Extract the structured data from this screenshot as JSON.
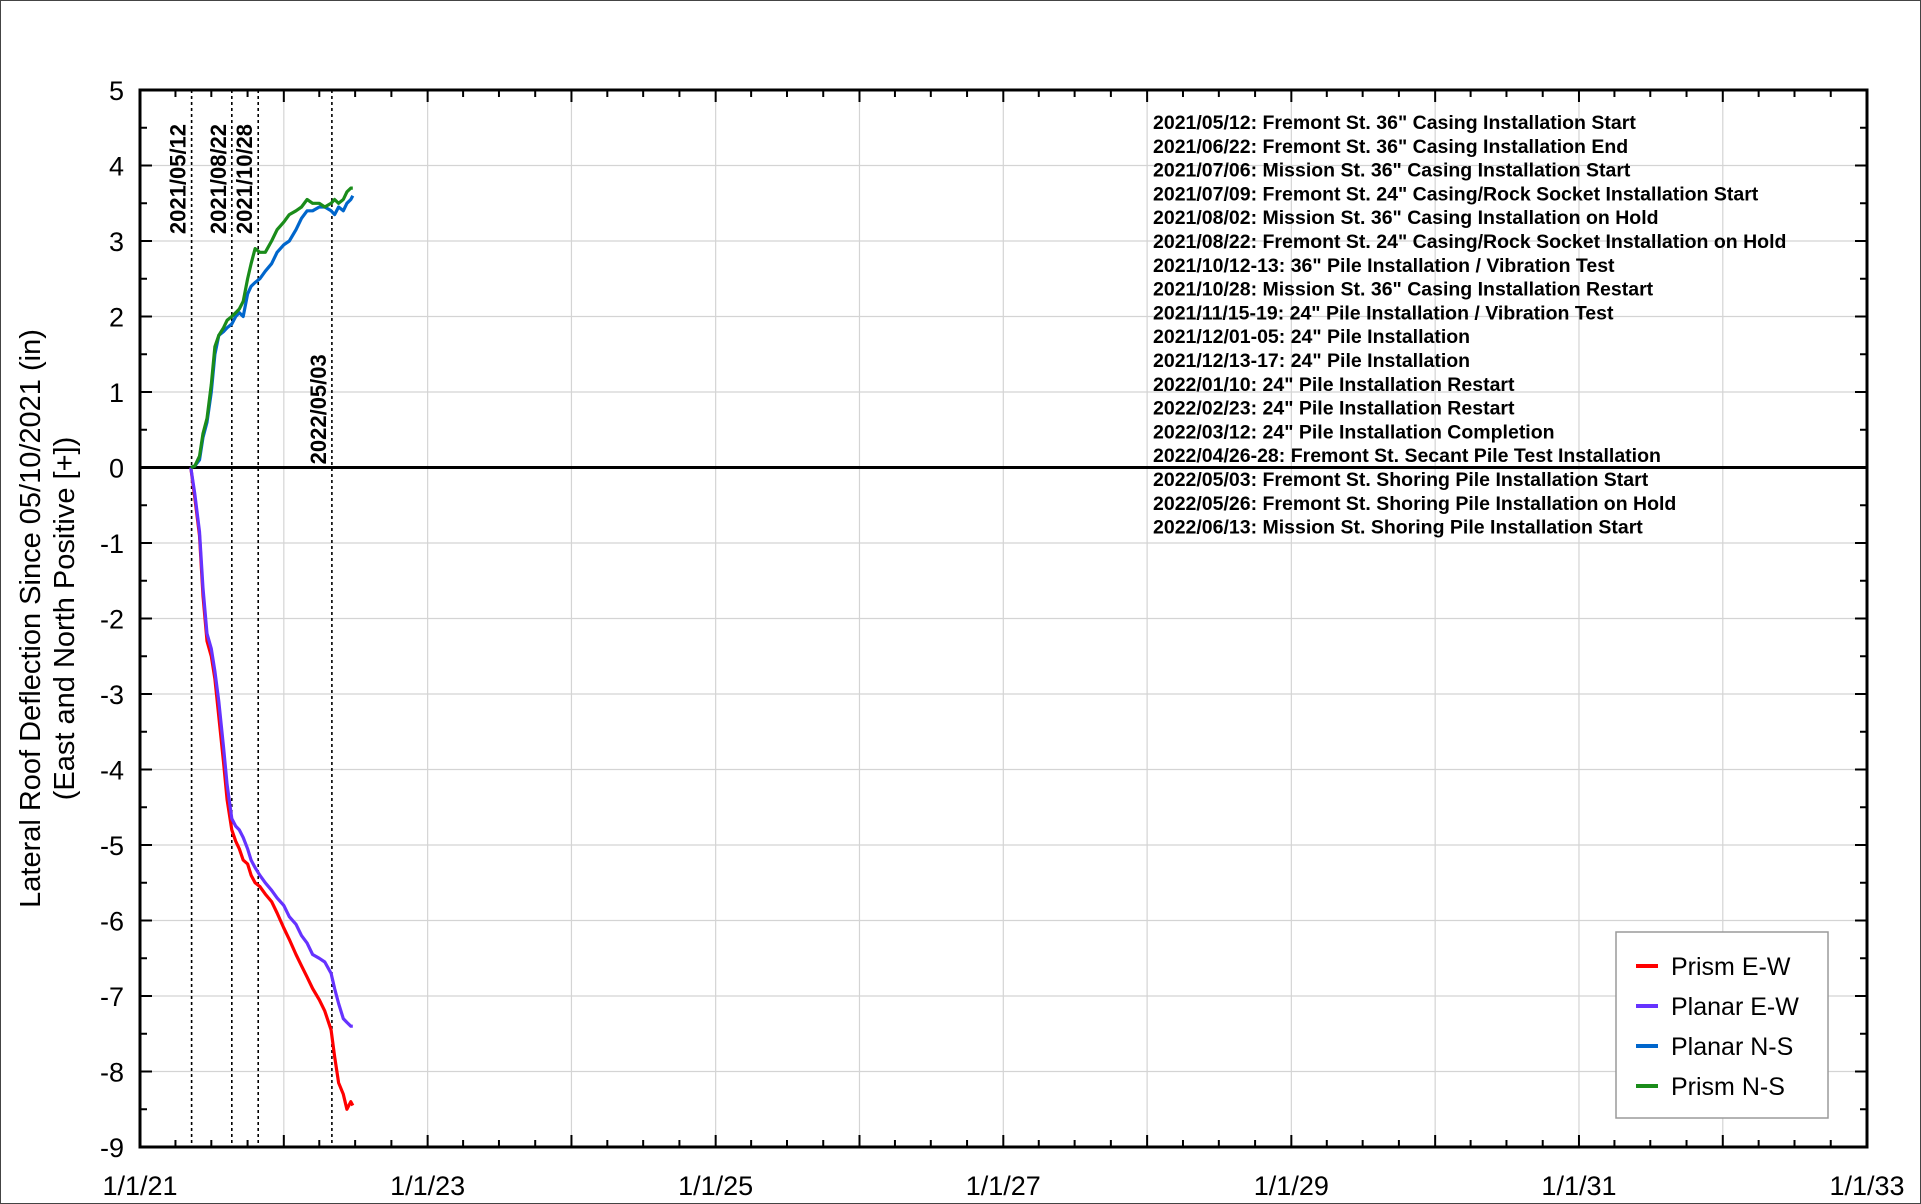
{
  "chart_data": {
    "type": "line",
    "ylabel_lines": [
      "Lateral Roof Deflection Since 05/10/2021 (in)",
      "(East and North Positive [+])"
    ],
    "ylim": [
      -9,
      5
    ],
    "yticks": [
      5,
      4,
      3,
      2,
      1,
      0,
      -1,
      -2,
      -3,
      -4,
      -5,
      -6,
      -7,
      -8,
      -9
    ],
    "xlim": [
      "2021-01-01",
      "2033-01-01"
    ],
    "xticks": [
      {
        "label": "1/1/21",
        "date": "2021-01-01"
      },
      {
        "label": "1/1/23",
        "date": "2023-01-01"
      },
      {
        "label": "1/1/25",
        "date": "2025-01-01"
      },
      {
        "label": "1/1/27",
        "date": "2027-01-01"
      },
      {
        "label": "1/1/29",
        "date": "2029-01-01"
      },
      {
        "label": "1/1/31",
        "date": "2031-01-01"
      },
      {
        "label": "1/1/33",
        "date": "2033-01-01"
      }
    ],
    "grid": true,
    "legend_position": "bottom-right",
    "event_lines": [
      {
        "date": "2021-05-12",
        "label": "2021/05/12",
        "label_top_y": 4.55
      },
      {
        "date": "2021-08-22",
        "label": "2021/08/22",
        "label_top_y": 4.55
      },
      {
        "date": "2021-10-28",
        "label": "2021/10/28",
        "label_top_y": 4.55
      },
      {
        "date": "2022-05-03",
        "label": "2022/05/03",
        "label_top_y": 1.5
      }
    ],
    "annotations": [
      "2021/05/12: Fremont St. 36\" Casing Installation Start",
      "2021/06/22: Fremont St. 36\" Casing Installation End",
      "2021/07/06: Mission St.  36\" Casing Installation Start",
      "2021/07/09: Fremont St. 24\" Casing/Rock Socket Installation Start",
      "2021/08/02: Mission St.  36\" Casing Installation on Hold",
      "2021/08/22: Fremont St. 24\" Casing/Rock Socket Installation on Hold",
      "2021/10/12-13: 36\" Pile Installation / Vibration Test",
      "2021/10/28: Mission St.  36\" Casing Installation Restart",
      "2021/11/15-19: 24\" Pile Installation / Vibration Test",
      "2021/12/01-05: 24\" Pile Installation",
      "2021/12/13-17: 24\" Pile Installation",
      "2022/01/10: 24\" Pile Installation Restart",
      "2022/02/23: 24\" Pile Installation Restart",
      "2022/03/12: 24\" Pile Installation Completion",
      "2022/04/26-28: Fremont St. Secant Pile Test Installation",
      "2022/05/03: Fremont St. Shoring Pile Installation Start",
      "2022/05/26: Fremont St. Shoring Pile Installation on Hold",
      "2022/06/13: Mission St. Shoring Pile Installation Start"
    ],
    "series": [
      {
        "name": "Prism E-W",
        "color": "#ff0000",
        "x": [
          "2021-05-10",
          "2021-05-20",
          "2021-06-01",
          "2021-06-10",
          "2021-06-20",
          "2021-07-01",
          "2021-07-10",
          "2021-07-20",
          "2021-08-01",
          "2021-08-10",
          "2021-08-22",
          "2021-09-01",
          "2021-09-10",
          "2021-09-20",
          "2021-10-01",
          "2021-10-10",
          "2021-10-20",
          "2021-11-01",
          "2021-11-15",
          "2021-12-01",
          "2021-12-15",
          "2022-01-01",
          "2022-01-15",
          "2022-02-01",
          "2022-02-15",
          "2022-03-01",
          "2022-03-15",
          "2022-04-01",
          "2022-04-15",
          "2022-05-01",
          "2022-05-10",
          "2022-05-20",
          "2022-06-01",
          "2022-06-10",
          "2022-06-20",
          "2022-06-25"
        ],
        "values": [
          0.0,
          -0.4,
          -0.9,
          -1.7,
          -2.3,
          -2.5,
          -2.8,
          -3.3,
          -3.9,
          -4.4,
          -4.8,
          -4.95,
          -5.05,
          -5.2,
          -5.25,
          -5.4,
          -5.5,
          -5.55,
          -5.65,
          -5.75,
          -5.9,
          -6.1,
          -6.25,
          -6.45,
          -6.6,
          -6.75,
          -6.9,
          -7.05,
          -7.2,
          -7.45,
          -7.8,
          -8.15,
          -8.3,
          -8.5,
          -8.4,
          -8.45
        ]
      },
      {
        "name": "Planar E-W",
        "color": "#6633ff",
        "x": [
          "2021-05-10",
          "2021-05-20",
          "2021-06-01",
          "2021-06-10",
          "2021-06-20",
          "2021-07-01",
          "2021-07-10",
          "2021-07-20",
          "2021-08-01",
          "2021-08-10",
          "2021-08-22",
          "2021-09-01",
          "2021-09-10",
          "2021-09-20",
          "2021-10-01",
          "2021-10-10",
          "2021-10-20",
          "2021-11-01",
          "2021-11-15",
          "2021-12-01",
          "2021-12-15",
          "2022-01-01",
          "2022-01-15",
          "2022-02-01",
          "2022-02-15",
          "2022-03-01",
          "2022-03-15",
          "2022-04-01",
          "2022-04-15",
          "2022-05-01",
          "2022-05-10",
          "2022-05-20",
          "2022-06-01",
          "2022-06-10",
          "2022-06-20",
          "2022-06-25"
        ],
        "values": [
          0.0,
          -0.35,
          -0.85,
          -1.6,
          -2.2,
          -2.4,
          -2.7,
          -3.1,
          -3.7,
          -4.2,
          -4.65,
          -4.75,
          -4.8,
          -4.9,
          -5.05,
          -5.2,
          -5.3,
          -5.4,
          -5.5,
          -5.6,
          -5.7,
          -5.8,
          -5.95,
          -6.05,
          -6.2,
          -6.3,
          -6.45,
          -6.5,
          -6.55,
          -6.7,
          -6.9,
          -7.1,
          -7.3,
          -7.35,
          -7.4,
          -7.4
        ]
      },
      {
        "name": "Planar N-S",
        "color": "#0066cc",
        "x": [
          "2021-05-10",
          "2021-05-20",
          "2021-06-01",
          "2021-06-10",
          "2021-06-20",
          "2021-07-01",
          "2021-07-10",
          "2021-07-20",
          "2021-08-01",
          "2021-08-10",
          "2021-08-22",
          "2021-09-01",
          "2021-09-10",
          "2021-09-20",
          "2021-10-01",
          "2021-10-10",
          "2021-10-20",
          "2021-11-01",
          "2021-11-15",
          "2021-12-01",
          "2021-12-15",
          "2022-01-01",
          "2022-01-15",
          "2022-02-01",
          "2022-02-15",
          "2022-03-01",
          "2022-03-15",
          "2022-04-01",
          "2022-04-15",
          "2022-05-01",
          "2022-05-10",
          "2022-05-20",
          "2022-06-01",
          "2022-06-10",
          "2022-06-20",
          "2022-06-25"
        ],
        "values": [
          0.0,
          0.02,
          0.1,
          0.4,
          0.6,
          1.0,
          1.5,
          1.75,
          1.8,
          1.85,
          1.9,
          2.0,
          2.05,
          2.0,
          2.3,
          2.4,
          2.45,
          2.5,
          2.6,
          2.7,
          2.85,
          2.95,
          3.0,
          3.15,
          3.3,
          3.4,
          3.4,
          3.45,
          3.45,
          3.4,
          3.35,
          3.45,
          3.4,
          3.5,
          3.55,
          3.6
        ]
      },
      {
        "name": "Prism N-S",
        "color": "#1a8c1a",
        "x": [
          "2021-05-10",
          "2021-05-20",
          "2021-06-01",
          "2021-06-10",
          "2021-06-20",
          "2021-07-01",
          "2021-07-10",
          "2021-07-20",
          "2021-08-01",
          "2021-08-10",
          "2021-08-22",
          "2021-09-01",
          "2021-09-10",
          "2021-09-20",
          "2021-10-01",
          "2021-10-10",
          "2021-10-20",
          "2021-11-01",
          "2021-11-15",
          "2021-12-01",
          "2021-12-15",
          "2022-01-01",
          "2022-01-15",
          "2022-02-01",
          "2022-02-15",
          "2022-03-01",
          "2022-03-15",
          "2022-04-01",
          "2022-04-15",
          "2022-05-01",
          "2022-05-10",
          "2022-05-20",
          "2022-06-01",
          "2022-06-10",
          "2022-06-20",
          "2022-06-25"
        ],
        "values": [
          0.0,
          0.02,
          0.15,
          0.45,
          0.65,
          1.1,
          1.6,
          1.75,
          1.85,
          1.95,
          2.0,
          2.05,
          2.1,
          2.2,
          2.5,
          2.7,
          2.9,
          2.85,
          2.85,
          3.0,
          3.15,
          3.25,
          3.35,
          3.4,
          3.45,
          3.55,
          3.5,
          3.5,
          3.45,
          3.5,
          3.55,
          3.5,
          3.55,
          3.65,
          3.7,
          3.7
        ]
      }
    ]
  }
}
